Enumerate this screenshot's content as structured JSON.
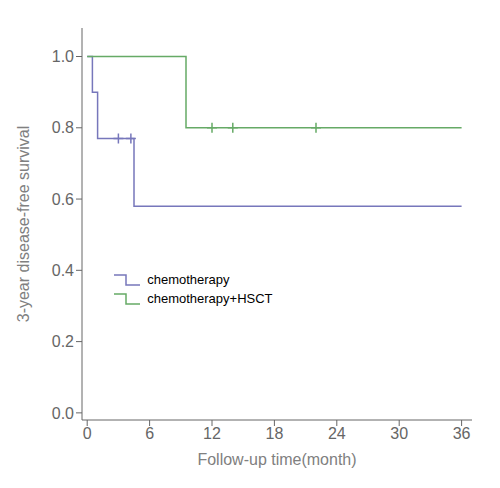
{
  "chart_data": {
    "type": "line",
    "xlabel": "Follow-up time(month)",
    "ylabel": "3-year disease-free survival",
    "xlim": [
      -0.5,
      37
    ],
    "ylim": [
      -0.02,
      1.08
    ],
    "xticks": [
      0,
      6,
      12,
      18,
      24,
      30,
      36
    ],
    "yticks": [
      {
        "value": 0.0,
        "label": "0.0"
      },
      0.2,
      0.4,
      0.6,
      0.8,
      {
        "value": 1.0,
        "label": "1.0"
      }
    ],
    "grid": false,
    "legend": "lower left",
    "series": [
      {
        "name": "chemotherapy",
        "color": "#7777bb",
        "line_style": "step",
        "marker": "+",
        "x": [
          0,
          0.5,
          0.5,
          1.0,
          1.0,
          3.5,
          3.5,
          4.5,
          4.5,
          7.0,
          7.0,
          36
        ],
        "values": [
          1.0,
          1.0,
          0.9,
          0.9,
          0.77,
          0.77,
          0.77,
          0.77,
          0.58,
          0.58,
          0.58,
          0.58
        ],
        "censor_x": [
          3.0,
          4.2
        ],
        "censor_values": [
          0.77,
          0.77
        ]
      },
      {
        "name": "chemotherapy+HSCT",
        "color": "#66aa66",
        "line_style": "step",
        "marker": "+",
        "x": [
          0,
          1.5,
          1.5,
          9.5,
          9.5,
          36
        ],
        "values": [
          1.0,
          1.0,
          1.0,
          1.0,
          0.8,
          0.8
        ],
        "censor_x": [
          12.0,
          14.0,
          22.0
        ],
        "censor_values": [
          0.8,
          0.8,
          0.8
        ]
      }
    ]
  }
}
